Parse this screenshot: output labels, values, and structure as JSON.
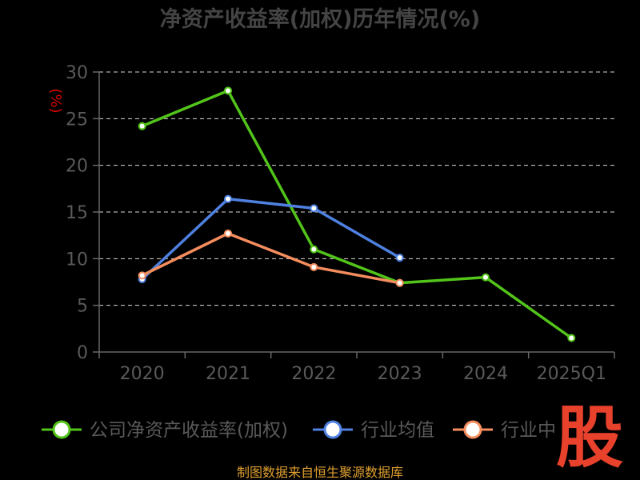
{
  "chart_data": {
    "type": "line",
    "title": "净资产收益率(加权)历年情况(%)",
    "ylabel": "(%)",
    "xlabel": "",
    "categories": [
      "2020",
      "2021",
      "2022",
      "2023",
      "2024",
      "2025Q1"
    ],
    "ylim": [
      0,
      30
    ],
    "yticks": [
      0,
      5,
      10,
      15,
      20,
      25,
      30
    ],
    "grid": true,
    "legend_position": "bottom",
    "series": [
      {
        "name": "公司净资产收益率(加权)",
        "color": "#52c41a",
        "values": [
          24.2,
          28.0,
          11.0,
          7.4,
          8.0,
          1.5
        ]
      },
      {
        "name": "行业均值",
        "color": "#4f81e1",
        "values": [
          7.8,
          16.4,
          15.4,
          10.1,
          null,
          null
        ]
      },
      {
        "name": "行业中位数",
        "color": "#f58d5e",
        "values": [
          8.2,
          12.7,
          9.1,
          7.4,
          null,
          null
        ]
      }
    ],
    "legend_labels": [
      "公司净资产收益率(加权)",
      "行业均值",
      "行业中"
    ]
  },
  "source": "制图数据来自恒生聚源数据库",
  "logo_text": "股"
}
